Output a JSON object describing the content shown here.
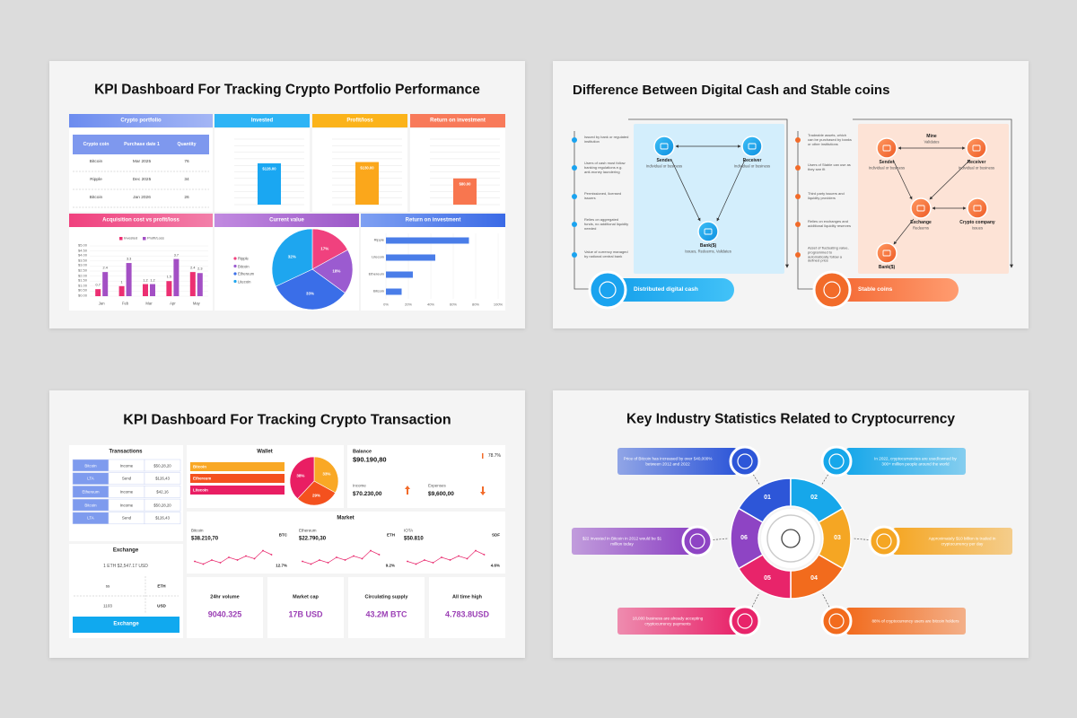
{
  "slide1": {
    "title": "KPI Dashboard For Tracking Crypto Portfolio Performance",
    "portfolio": {
      "header": "Crypto portfolio",
      "columns": [
        "Crypto coin",
        "Purchase date 1",
        "Quantity"
      ],
      "rows": [
        [
          "Bitcoin",
          "Mar 2025",
          76
        ],
        [
          "Ripple",
          "Dec 2025",
          34
        ],
        [
          "Bitcoin",
          "Jan 2026",
          26
        ]
      ]
    },
    "mini_bars": {
      "type": "bar",
      "ylim": [
        0,
        200
      ],
      "panels": [
        {
          "header": "Invested",
          "color": "#1aa7f2",
          "value": 126,
          "value_label": "$126.00"
        },
        {
          "header": "Profit/loss",
          "color": "#fba71b",
          "value": 130,
          "value_label": "$130.00"
        },
        {
          "header": "Return on investment",
          "color": "#f8764f",
          "value": 80,
          "value_label": "$80.00"
        }
      ]
    },
    "acquisition": {
      "type": "bar",
      "title": "Acquisition cost vs profit/loss",
      "categories": [
        "Jan",
        "Feb",
        "Mar",
        "Apr",
        "May"
      ],
      "series": [
        {
          "name": "Invested",
          "color": "#ec2f72",
          "values": [
            0.7,
            1,
            1.2,
            1.5,
            2.4
          ]
        },
        {
          "name": "Profit/Loss",
          "color": "#a34fc4",
          "values": [
            2.4,
            3.3,
            1.2,
            3.7,
            2.3
          ]
        }
      ],
      "ylim": [
        0,
        5
      ],
      "yticks": [
        {
          "value": 0,
          "label": "$0.00"
        },
        {
          "value": 0.5,
          "label": "$0.50"
        },
        {
          "value": 1,
          "label": "$1.00"
        },
        {
          "value": 1.5,
          "label": "$1.50"
        },
        {
          "value": 2,
          "label": "$2.00"
        },
        {
          "value": 2.5,
          "label": "$2.50"
        },
        {
          "value": 3,
          "label": "$3.00"
        },
        {
          "value": 3.5,
          "label": "$3.50"
        },
        {
          "value": 4,
          "label": "$4.00"
        },
        {
          "value": 4.5,
          "label": "$4.50"
        },
        {
          "value": 5,
          "label": "$5.00"
        }
      ]
    },
    "current_value": {
      "type": "pie",
      "title": "Current value",
      "categories": [
        "Ripple",
        "Bitcoin",
        "Ethereum",
        "Litecoin"
      ],
      "values": [
        17,
        18,
        33,
        32
      ],
      "value_labels": [
        "17%",
        "18%",
        "33%",
        "32%"
      ],
      "colors": [
        "#f0417e",
        "#9b5bd0",
        "#3a6ee8",
        "#1ea6ef"
      ]
    },
    "roi": {
      "type": "bar",
      "orientation": "horizontal",
      "title": "Return on investment",
      "categories": [
        "Ripple",
        "Litecoin",
        "Ethereum",
        "Bitcoin"
      ],
      "values": [
        74,
        44,
        24,
        14
      ],
      "color": "#4a7de8",
      "xlim": [
        0,
        100
      ],
      "xticks": [
        {
          "value": 0,
          "label": "0%"
        },
        {
          "value": 20,
          "label": "20%"
        },
        {
          "value": 40,
          "label": "40%"
        },
        {
          "value": 60,
          "label": "60%"
        },
        {
          "value": 80,
          "label": "80%"
        },
        {
          "value": 100,
          "label": "100%"
        }
      ]
    }
  },
  "slide2": {
    "title": "Difference Between Digital Cash and Stable coins",
    "digital_cash": {
      "label": "Distributed digital cash",
      "points": [
        "Issued by bank or regulated institution",
        "Users of cash must follow banking regulations e.g. anti-money laundering",
        "Permissioned, licensed issuers",
        "Relies on aggregated funds, no additional liquidity needed",
        "Value of currency managed by national central bank"
      ],
      "nodes": [
        {
          "name": "Sender",
          "desc": "Individual or business"
        },
        {
          "name": "Receiver",
          "desc": "Individual or business"
        },
        {
          "name": "Bank($)",
          "desc": "Issues, Redeems, Validates"
        }
      ]
    },
    "stable_coins": {
      "label": "Stable coins",
      "points": [
        "Tradeable assets, which can be purchased by banks or other institutions",
        "Users of Stable can use as they see fit",
        "Third party issuers and liquidity providers",
        "Relies on exchanges and additional liquidity reserves",
        "Asset of fluctuating value, programmed to automatically follow a defined price"
      ],
      "nodes": [
        {
          "name": "Mine",
          "desc": "Validates"
        },
        {
          "name": "Sender",
          "desc": "Individual or business"
        },
        {
          "name": "Receiver",
          "desc": "Individual or business"
        },
        {
          "name": "Exchange",
          "desc": "Redeems"
        },
        {
          "name": "Crypto company",
          "desc": "Issues"
        },
        {
          "name": "Bank($)"
        }
      ]
    }
  },
  "slide3": {
    "title": "KPI Dashboard For Tracking Crypto Transaction",
    "transactions": {
      "title": "Transactions",
      "rows": [
        [
          "Bitcoin",
          "Income",
          "$50,28,20"
        ],
        [
          "LTA",
          "Send",
          "$126,43"
        ],
        [
          "Ethereum",
          "Income",
          "$42,16"
        ],
        [
          "Bitcoin",
          "Income",
          "$50,28,20"
        ],
        [
          "LTA",
          "Send",
          "$126,43"
        ]
      ]
    },
    "wallet": {
      "type": "pie",
      "title": "Wallet",
      "categories": [
        "Bitcoin",
        "Ethereum",
        "Litecoin"
      ],
      "values": [
        33,
        29,
        38
      ],
      "value_labels": [
        "33%",
        "29%",
        "38%"
      ],
      "colors": [
        "#f9a825",
        "#f4511e",
        "#e91e63"
      ]
    },
    "balance": {
      "title": "Balance",
      "amount": "$90.190,80",
      "change": "78.7%",
      "income_label": "Income",
      "income": "$70.230,00",
      "expenses_label": "Expenses",
      "expenses": "$9,600,00"
    },
    "market": {
      "title": "Market",
      "coins": [
        {
          "name": "Bitcoin",
          "price": "$38.210,70",
          "code": "BTC",
          "change": "12.7%"
        },
        {
          "name": "Ethereum",
          "price": "$22.790,30",
          "code": "ETH",
          "change": "9.2%"
        },
        {
          "name": "IOTA",
          "price": "$50.810",
          "code": "SDF",
          "change": "4.6%"
        }
      ]
    },
    "exchange": {
      "title": "Exchange",
      "rate": "1 ETH $2,547.17 USD",
      "from_amount": "ss",
      "from_code": "ETH",
      "to_amount": "1103",
      "to_code": "USD",
      "button": "Exchange"
    },
    "stats": [
      {
        "label": "24hr volume",
        "value": "9040.325"
      },
      {
        "label": "Market cap",
        "value": "17B USD"
      },
      {
        "label": "Circulating supply",
        "value": "43.2M BTC"
      },
      {
        "label": "All time high",
        "value": "4.783.8USD"
      }
    ]
  },
  "slide4": {
    "title": "Key Industry Statistics Related to Cryptocurrency",
    "items": [
      {
        "number": "01",
        "text": "Price of Bitcoin has increased by over 540,000% between 2012 and 2022"
      },
      {
        "number": "02",
        "text": "In 2022, cryptocurrencies are used/owned by 300+ million people around the world"
      },
      {
        "number": "03",
        "text": "Approximately $10 billion is traded in cryptocurrency per day"
      },
      {
        "number": "04",
        "text": "88% of cryptocurrency users are bitcoin holders"
      },
      {
        "number": "05",
        "text": "18,000 business are already accepting cryptocurrency payments"
      },
      {
        "number": "06",
        "text": "$22 invested in Bitcoin in 2012 would be $1 million today"
      }
    ]
  }
}
